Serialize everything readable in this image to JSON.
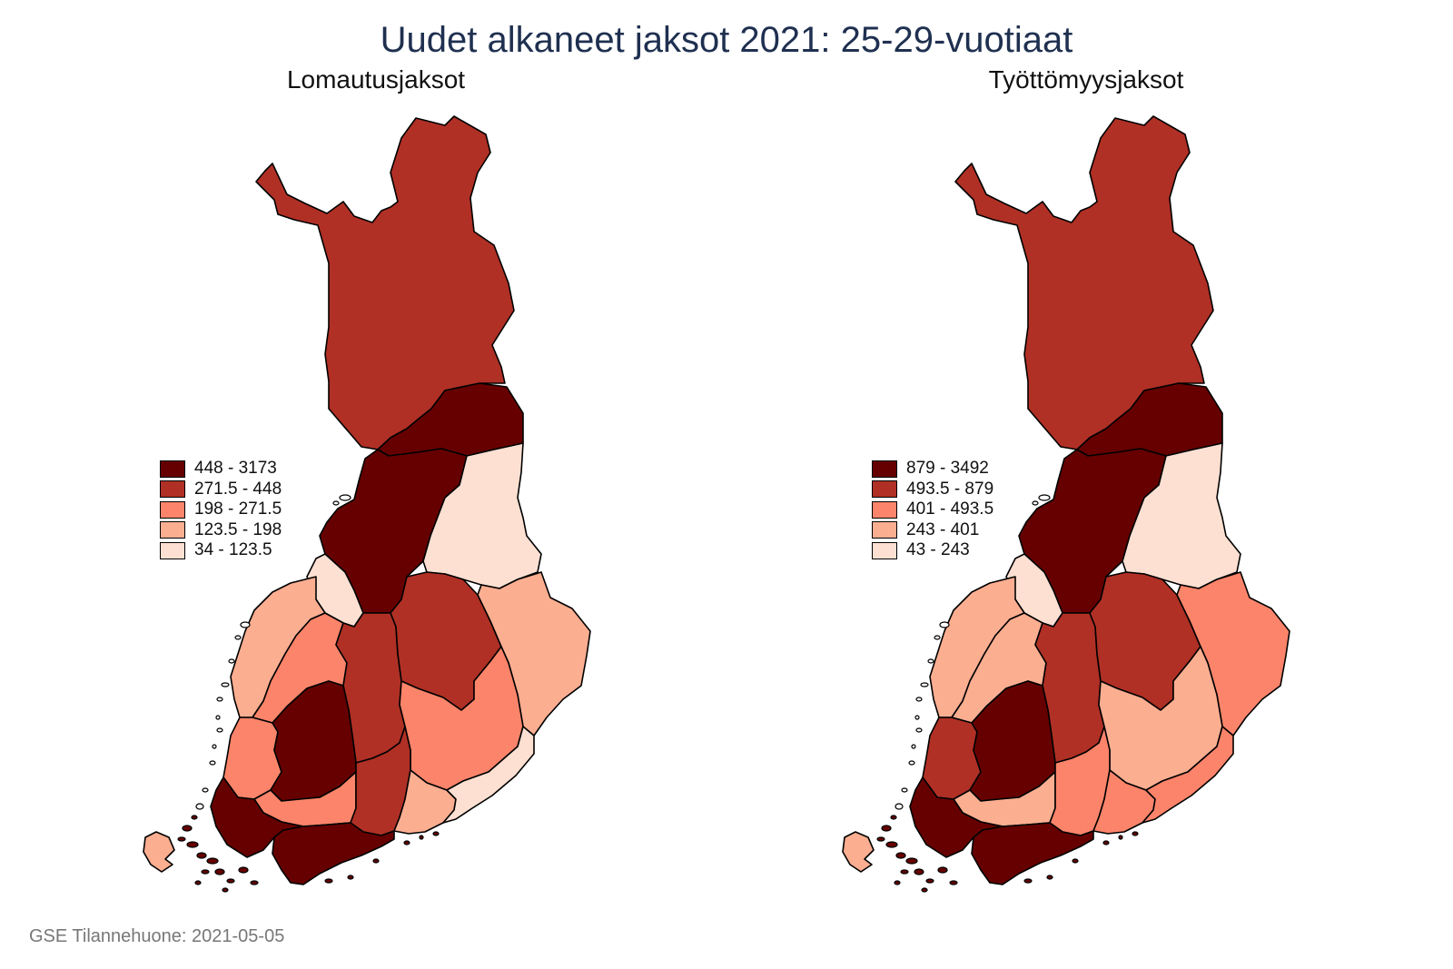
{
  "title": "Uudet alkaneet jaksot 2021: 25-29-vuotiaat",
  "footer": "GSE Tilannehuone: 2021-05-05",
  "maps": [
    {
      "subtitle": "Lomautusjaksot",
      "legend": [
        {
          "label": "448  -  3173",
          "color": "#660000"
        },
        {
          "label": "271.5  -  448",
          "color": "#b03025"
        },
        {
          "label": "198  -  271.5",
          "color": "#fb846a"
        },
        {
          "label": "123.5  -  198",
          "color": "#fcae91"
        },
        {
          "label": "34  -  123.5",
          "color": "#fde0d2"
        }
      ],
      "regions": {
        "lappi": "#b03025",
        "kainuu_ne": "#660000",
        "kainuu": "#fde0d2",
        "pohjois_pohjanmaa": "#660000",
        "keski_pohjanmaa": "#fde0d2",
        "vaasa_coast": "#fcae91",
        "etela_pohjanmaa": "#fb846a",
        "keski_suomi": "#b03025",
        "pohjois_savo": "#b03025",
        "pohjois_karjala": "#fcae91",
        "etela_savo": "#fb846a",
        "satakunta": "#fb846a",
        "pirkanmaa": "#660000",
        "kanta_hame": "#fb846a",
        "paijat_hame": "#b03025",
        "kymenlaakso": "#fcae91",
        "etela_karjala": "#fde0d2",
        "varsinais_suomi": "#660000",
        "uusimaa": "#660000",
        "ahvenanmaa": "#fcae91"
      }
    },
    {
      "subtitle": "Työttömyysjaksot",
      "legend": [
        {
          "label": "879  -  3492",
          "color": "#660000"
        },
        {
          "label": "493.5  -  879",
          "color": "#b03025"
        },
        {
          "label": "401  -  493.5",
          "color": "#fb846a"
        },
        {
          "label": "243  -  401",
          "color": "#fcae91"
        },
        {
          "label": "43  -  243",
          "color": "#fde0d2"
        }
      ],
      "regions": {
        "lappi": "#b03025",
        "kainuu_ne": "#660000",
        "kainuu": "#fde0d2",
        "pohjois_pohjanmaa": "#660000",
        "keski_pohjanmaa": "#fde0d2",
        "vaasa_coast": "#fcae91",
        "etela_pohjanmaa": "#fcae91",
        "keski_suomi": "#b03025",
        "pohjois_savo": "#b03025",
        "pohjois_karjala": "#fb846a",
        "etela_savo": "#fcae91",
        "satakunta": "#b03025",
        "pirkanmaa": "#660000",
        "kanta_hame": "#fcae91",
        "paijat_hame": "#fb846a",
        "kymenlaakso": "#fb846a",
        "etela_karjala": "#fb846a",
        "varsinais_suomi": "#660000",
        "uusimaa": "#660000",
        "ahvenanmaa": "#fcae91"
      }
    }
  ]
}
